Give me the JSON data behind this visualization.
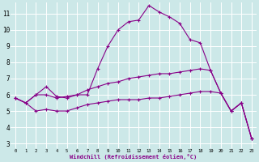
{
  "title": "",
  "xlabel": "Windchill (Refroidissement éolien,°C)",
  "background_color": "#cce8e8",
  "grid_color": "#ffffff",
  "line_color": "#880088",
  "marker": "+",
  "x_ticks": [
    0,
    1,
    2,
    3,
    4,
    5,
    6,
    7,
    8,
    9,
    10,
    11,
    12,
    13,
    14,
    15,
    16,
    17,
    18,
    19,
    20,
    21,
    22,
    23
  ],
  "y_ticks": [
    3,
    4,
    5,
    6,
    7,
    8,
    9,
    10,
    11
  ],
  "xlim": [
    -0.5,
    23.5
  ],
  "ylim": [
    2.7,
    11.7
  ],
  "series1_x": [
    0,
    1,
    2,
    3,
    4,
    5,
    6,
    7,
    8,
    9,
    10,
    11,
    12,
    13,
    14,
    15,
    16,
    17,
    18,
    19,
    20,
    21,
    22,
    23
  ],
  "series1_y": [
    5.8,
    5.5,
    6.0,
    6.0,
    5.8,
    5.9,
    6.0,
    6.0,
    7.6,
    9.0,
    10.0,
    10.5,
    10.6,
    11.5,
    11.1,
    10.8,
    10.4,
    9.4,
    9.2,
    7.5,
    6.1,
    5.0,
    5.5,
    3.3
  ],
  "series2_x": [
    0,
    1,
    2,
    3,
    4,
    5,
    6,
    7,
    8,
    9,
    10,
    11,
    12,
    13,
    14,
    15,
    16,
    17,
    18,
    19,
    20,
    21,
    22,
    23
  ],
  "series2_y": [
    5.8,
    5.5,
    6.0,
    6.5,
    5.9,
    5.8,
    6.0,
    6.3,
    6.5,
    6.7,
    6.8,
    7.0,
    7.1,
    7.2,
    7.3,
    7.3,
    7.4,
    7.5,
    7.6,
    7.5,
    6.1,
    5.0,
    5.5,
    3.3
  ],
  "series3_x": [
    0,
    1,
    2,
    3,
    4,
    5,
    6,
    7,
    8,
    9,
    10,
    11,
    12,
    13,
    14,
    15,
    16,
    17,
    18,
    19,
    20,
    21,
    22,
    23
  ],
  "series3_y": [
    5.8,
    5.5,
    5.0,
    5.1,
    5.0,
    5.0,
    5.2,
    5.4,
    5.5,
    5.6,
    5.7,
    5.7,
    5.7,
    5.8,
    5.8,
    5.9,
    6.0,
    6.1,
    6.2,
    6.2,
    6.1,
    5.0,
    5.5,
    3.3
  ]
}
